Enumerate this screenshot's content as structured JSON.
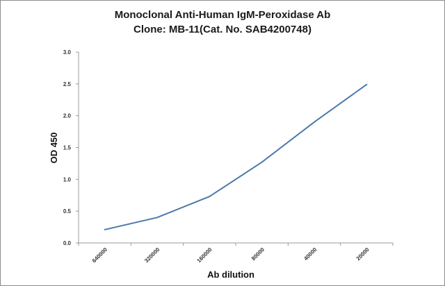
{
  "chart_data": {
    "type": "line",
    "title": "Monoclonal Anti-Human IgM-Peroxidase Ab",
    "subtitle": "Clone: MB-11(Cat. No. SAB4200748)",
    "xlabel": "Ab dilution",
    "ylabel": "OD 450",
    "categories": [
      "640000",
      "320000",
      "160000",
      "80000",
      "40000",
      "20000"
    ],
    "series": [
      {
        "name": "",
        "values": [
          0.21,
          0.4,
          0.73,
          1.27,
          1.9,
          2.49
        ],
        "color": "#4a78aa"
      }
    ],
    "ylim": [
      0,
      3.0
    ],
    "yticks": [
      "0.0",
      "0.5",
      "1.0",
      "1.5",
      "2.0",
      "2.5",
      "3.0"
    ],
    "grid": false,
    "legend": "none"
  }
}
